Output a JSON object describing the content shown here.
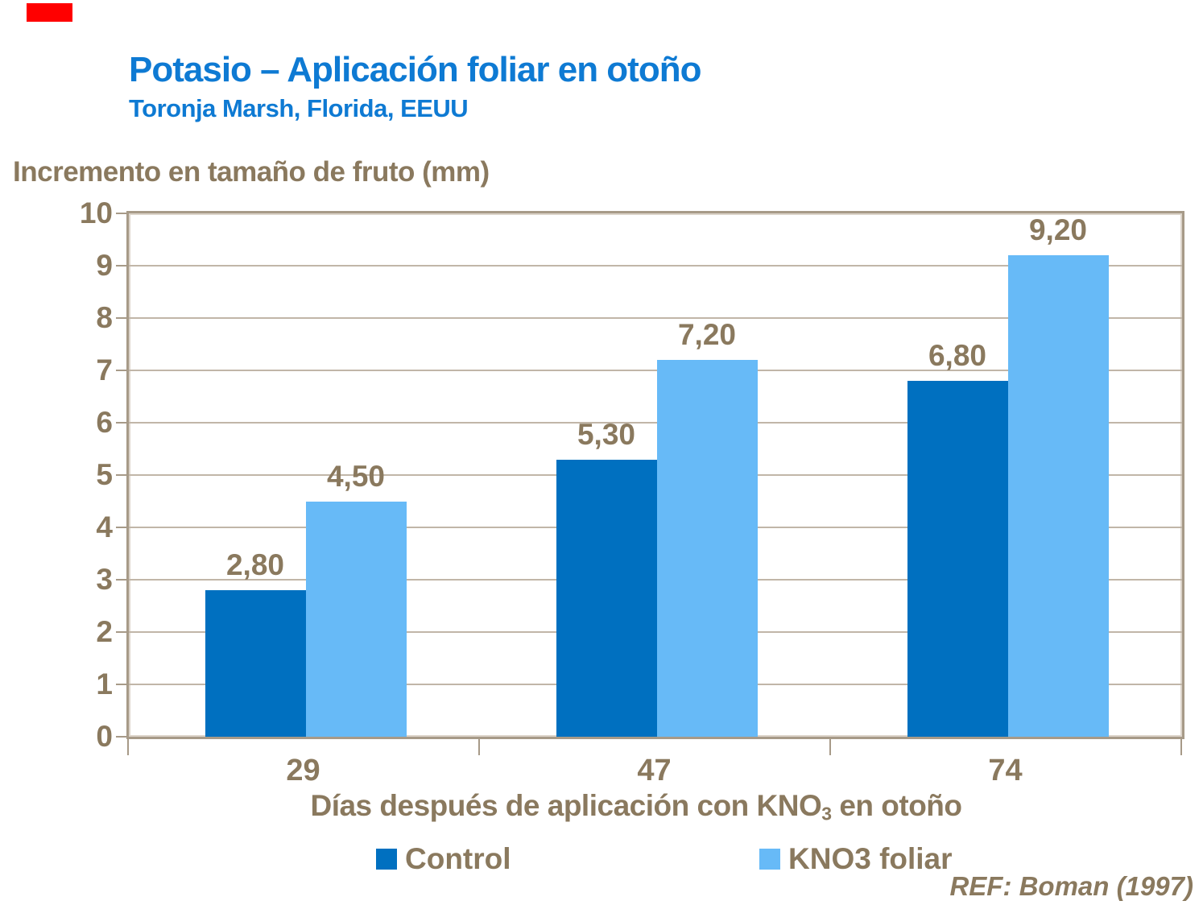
{
  "header": {
    "title": "Potasio – Aplicación foliar en otoño",
    "subtitle": "Toronja Marsh, Florida, EEUU",
    "title_color": "#0E7AD3"
  },
  "footer": {
    "reference": "REF: Boman (1997)"
  },
  "decorations": {
    "red_badge_color": "#FF0000"
  },
  "chart_data": {
    "type": "bar",
    "title": "Potasio – Aplicación foliar en otoño",
    "subtitle": "Toronja Marsh, Florida, EEUU",
    "ylabel": "Incremento en tamaño de fruto (mm)",
    "xlabel": "Días después de aplicación con KNO3 en otoño",
    "xlabel_parts": {
      "pre": "Días después de aplicación con KNO",
      "sub": "3",
      "post": " en otoño"
    },
    "categories": [
      "29",
      "47",
      "74"
    ],
    "series": [
      {
        "name": "Control",
        "color": "#0070C0",
        "values": [
          2.8,
          5.3,
          6.8
        ],
        "labels": [
          "2,80",
          "5,30",
          "6,80"
        ]
      },
      {
        "name": "KNO3 foliar",
        "color": "#67BAF7",
        "values": [
          4.5,
          7.2,
          9.2
        ],
        "labels": [
          "4,50",
          "7,20",
          "9,20"
        ]
      }
    ],
    "ylim": [
      0,
      10
    ],
    "ytick_step": 1,
    "grid": true,
    "legend_position": "bottom",
    "text_color": "#8A795E",
    "grid_color": "#C1B6A8",
    "border_color": "#A79A88"
  }
}
